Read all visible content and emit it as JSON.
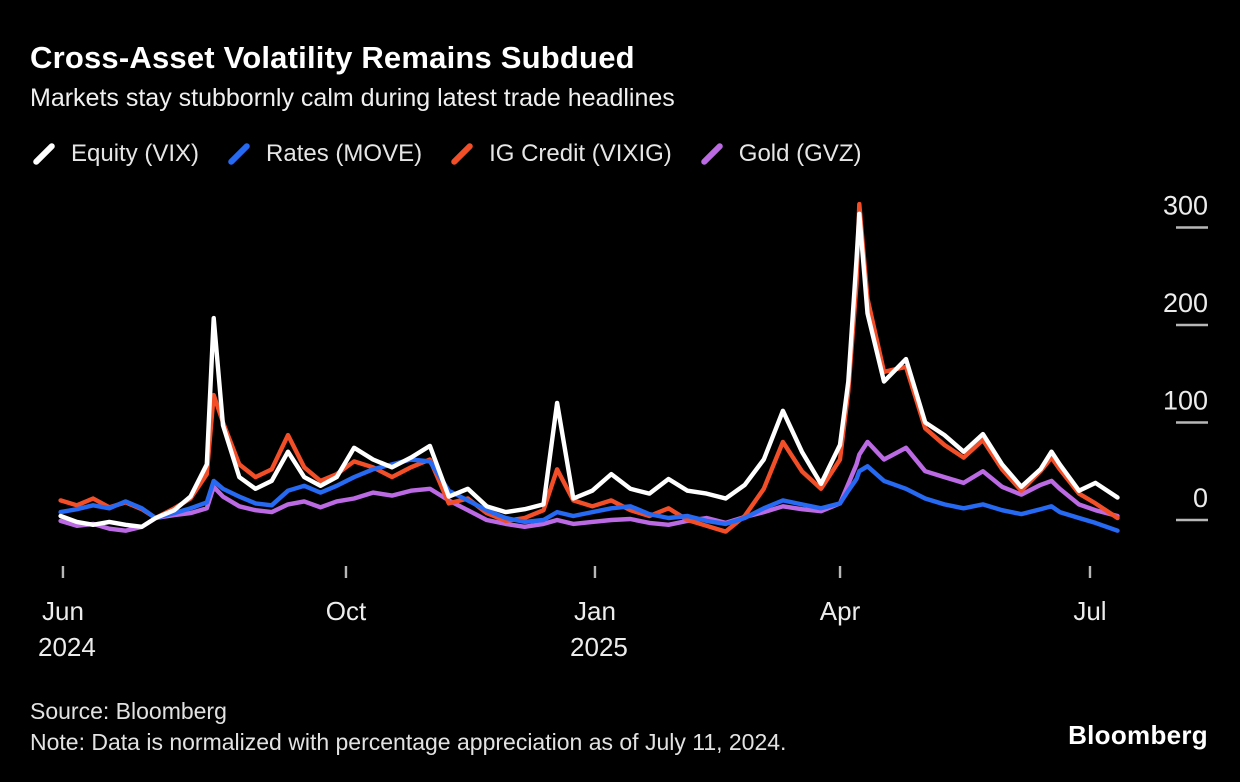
{
  "header": {
    "title": "Cross-Asset Volatility Remains Subdued",
    "subtitle": "Markets stay stubbornly calm during latest trade headlines"
  },
  "legend": {
    "items": [
      {
        "label": "Equity (VIX)",
        "color": "#ffffff"
      },
      {
        "label": "Rates (MOVE)",
        "color": "#2669f2"
      },
      {
        "label": "IG Credit (VIXIG)",
        "color": "#f24e28"
      },
      {
        "label": "Gold (GVZ)",
        "color": "#bc69e4"
      }
    ]
  },
  "chart_data": {
    "type": "line",
    "title": "Cross-Asset Volatility Remains Subdued",
    "subtitle": "Markets stay stubbornly calm during latest trade headlines",
    "ylabel": "",
    "xlabel": "",
    "unit": "% appreciation normalized to July 11, 2024",
    "grid": false,
    "legend_position": "top",
    "axis_side": "right",
    "ylim": [
      -30,
      345
    ],
    "yticks": [
      0,
      100,
      200,
      300
    ],
    "xticks": [
      {
        "label": "Jun",
        "sublabel": "2024",
        "date": "2024-06-01",
        "pos": 0.0075
      },
      {
        "label": "Oct",
        "sublabel": "",
        "date": "2024-10-01",
        "pos": 0.2745
      },
      {
        "label": "Jan",
        "sublabel": "2025",
        "date": "2025-01-01",
        "pos": 0.5094
      },
      {
        "label": "Apr",
        "sublabel": "",
        "date": "2025-04-01",
        "pos": 0.7406
      },
      {
        "label": "Jul",
        "sublabel": "",
        "date": "2025-07-01",
        "pos": 0.9764
      }
    ],
    "x_dates": [
      "2024-05-31",
      "2024-06-07",
      "2024-06-14",
      "2024-06-21",
      "2024-06-28",
      "2024-07-05",
      "2024-07-11",
      "2024-07-19",
      "2024-07-26",
      "2024-08-02",
      "2024-08-05",
      "2024-08-09",
      "2024-08-16",
      "2024-08-23",
      "2024-08-30",
      "2024-09-06",
      "2024-09-13",
      "2024-09-20",
      "2024-09-27",
      "2024-10-04",
      "2024-10-11",
      "2024-10-18",
      "2024-10-25",
      "2024-11-01",
      "2024-11-08",
      "2024-11-15",
      "2024-11-22",
      "2024-11-29",
      "2024-12-06",
      "2024-12-13",
      "2024-12-18",
      "2024-12-24",
      "2024-12-31",
      "2025-01-07",
      "2025-01-14",
      "2025-01-21",
      "2025-01-28",
      "2025-02-04",
      "2025-02-11",
      "2025-02-18",
      "2025-02-25",
      "2025-03-04",
      "2025-03-11",
      "2025-03-18",
      "2025-03-25",
      "2025-04-01",
      "2025-04-04",
      "2025-04-07",
      "2025-04-08",
      "2025-04-11",
      "2025-04-17",
      "2025-04-25",
      "2025-05-02",
      "2025-05-09",
      "2025-05-16",
      "2025-05-23",
      "2025-05-30",
      "2025-06-06",
      "2025-06-13",
      "2025-06-17",
      "2025-06-20",
      "2025-06-27",
      "2025-07-03",
      "2025-07-11"
    ],
    "series": [
      {
        "name": "Equity (VIX)",
        "color": "#ffffff",
        "values": [
          2,
          -4,
          -7,
          -4,
          -7,
          -9,
          0,
          8,
          22,
          55,
          205,
          95,
          42,
          30,
          38,
          68,
          42,
          33,
          42,
          72,
          60,
          52,
          62,
          74,
          22,
          30,
          12,
          6,
          9,
          14,
          118,
          20,
          28,
          45,
          30,
          25,
          40,
          28,
          25,
          20,
          34,
          60,
          110,
          68,
          35,
          75,
          140,
          265,
          312,
          210,
          140,
          163,
          98,
          85,
          68,
          86,
          55,
          32,
          50,
          68,
          55,
          28,
          36,
          21
        ]
      },
      {
        "name": "Rates (MOVE)",
        "color": "#2669f2",
        "values": [
          6,
          9,
          13,
          10,
          17,
          10,
          0,
          5,
          10,
          16,
          38,
          30,
          22,
          15,
          13,
          28,
          33,
          26,
          33,
          42,
          50,
          55,
          60,
          58,
          28,
          18,
          8,
          0,
          -4,
          -2,
          6,
          2,
          6,
          10,
          12,
          4,
          0,
          2,
          -3,
          -6,
          0,
          10,
          18,
          14,
          10,
          15,
          28,
          40,
          48,
          53,
          38,
          30,
          20,
          14,
          10,
          14,
          8,
          4,
          9,
          12,
          6,
          0,
          -5,
          -13
        ]
      },
      {
        "name": "IG Credit (VIXIG)",
        "color": "#f24e28",
        "values": [
          18,
          13,
          20,
          11,
          16,
          9,
          0,
          10,
          20,
          45,
          126,
          98,
          55,
          42,
          50,
          85,
          52,
          38,
          45,
          58,
          52,
          42,
          52,
          60,
          15,
          20,
          5,
          -3,
          0,
          8,
          50,
          18,
          12,
          18,
          8,
          2,
          10,
          -2,
          -8,
          -14,
          2,
          30,
          78,
          48,
          30,
          60,
          130,
          240,
          322,
          225,
          150,
          155,
          92,
          75,
          62,
          80,
          50,
          28,
          48,
          62,
          50,
          25,
          15,
          0
        ]
      },
      {
        "name": "Gold (GVZ)",
        "color": "#bc69e4",
        "values": [
          -3,
          -8,
          -6,
          -11,
          -13,
          -9,
          0,
          3,
          5,
          10,
          32,
          22,
          12,
          8,
          6,
          14,
          17,
          11,
          17,
          20,
          26,
          23,
          28,
          30,
          18,
          8,
          -2,
          -6,
          -9,
          -6,
          -2,
          -6,
          -4,
          -2,
          -1,
          -5,
          -7,
          -3,
          0,
          -5,
          1,
          6,
          12,
          9,
          7,
          15,
          35,
          55,
          65,
          78,
          60,
          72,
          48,
          42,
          36,
          48,
          32,
          24,
          34,
          38,
          30,
          14,
          8,
          2
        ]
      }
    ]
  },
  "footer": {
    "source": "Source: Bloomberg",
    "note": "Note: Data is normalized with percentage appreciation as of July 11, 2024.",
    "brand": "Bloomberg"
  }
}
